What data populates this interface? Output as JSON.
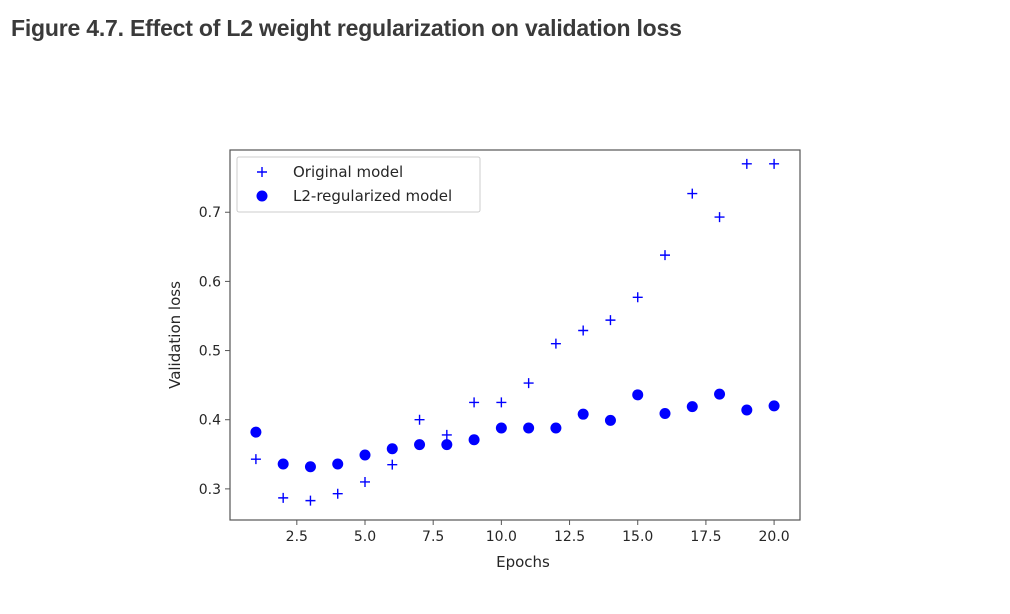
{
  "figure": {
    "title": "Figure 4.7. Effect of L2 weight regularization on validation loss"
  },
  "chart_data": {
    "type": "scatter",
    "xlabel": "Epochs",
    "ylabel": "Validation loss",
    "xlim": [
      0.05,
      20.95
    ],
    "ylim": [
      0.255,
      0.79
    ],
    "xticks": [
      2.5,
      5.0,
      7.5,
      10.0,
      12.5,
      15.0,
      17.5,
      20.0
    ],
    "xtick_labels": [
      "2.5",
      "5.0",
      "7.5",
      "10.0",
      "12.5",
      "15.0",
      "17.5",
      "20.0"
    ],
    "yticks": [
      0.3,
      0.4,
      0.5,
      0.6,
      0.7
    ],
    "ytick_labels": [
      "0.3",
      "0.4",
      "0.5",
      "0.6",
      "0.7"
    ],
    "legend_position": "top-left",
    "grid": false,
    "series": [
      {
        "name": "Original model",
        "marker": "plus",
        "color": "#0000ff",
        "x": [
          1,
          2,
          3,
          4,
          5,
          6,
          7,
          8,
          9,
          10,
          11,
          12,
          13,
          14,
          15,
          16,
          17,
          18,
          19,
          20
        ],
        "y": [
          0.343,
          0.287,
          0.283,
          0.293,
          0.31,
          0.335,
          0.4,
          0.378,
          0.425,
          0.425,
          0.453,
          0.51,
          0.529,
          0.544,
          0.577,
          0.638,
          0.727,
          0.693,
          0.77,
          0.77
        ]
      },
      {
        "name": "L2-regularized model",
        "marker": "circle",
        "color": "#0000ff",
        "x": [
          1,
          2,
          3,
          4,
          5,
          6,
          7,
          8,
          9,
          10,
          11,
          12,
          13,
          14,
          15,
          16,
          17,
          18,
          19,
          20
        ],
        "y": [
          0.382,
          0.336,
          0.332,
          0.336,
          0.349,
          0.358,
          0.364,
          0.364,
          0.371,
          0.388,
          0.388,
          0.388,
          0.408,
          0.399,
          0.436,
          0.409,
          0.419,
          0.437,
          0.414,
          0.42
        ]
      }
    ]
  }
}
